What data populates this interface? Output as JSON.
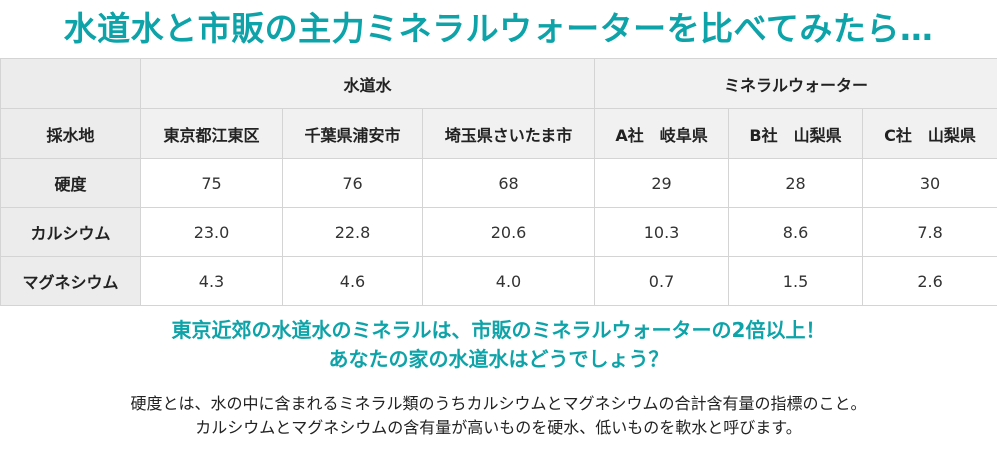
{
  "title": "水道水と市販の主力ミネラルウォーターを比べてみたら…",
  "table": {
    "group_headers": [
      "水道水",
      "ミネラルウォーター"
    ],
    "row_header_label": "採水地",
    "columns": [
      "東京都江東区",
      "千葉県浦安市",
      "埼玉県さいたま市",
      "A社　岐阜県",
      "B社　山梨県",
      "C社　山梨県"
    ],
    "rows": [
      {
        "label": "硬度",
        "values": [
          "75",
          "76",
          "68",
          "29",
          "28",
          "30"
        ]
      },
      {
        "label": "カルシウム",
        "values": [
          "23.0",
          "22.8",
          "20.6",
          "10.3",
          "8.6",
          "7.8"
        ]
      },
      {
        "label": "マグネシウム",
        "values": [
          "4.3",
          "4.6",
          "4.0",
          "0.7",
          "1.5",
          "2.6"
        ]
      }
    ]
  },
  "highlight": {
    "line1": "東京近郊の水道水のミネラルは、市販のミネラルウォーターの2倍以上！",
    "line2": "あなたの家の水道水はどうでしょう？"
  },
  "description": {
    "line1": "硬度とは、水の中に含まれるミネラル類のうちカルシウムとマグネシウムの合計含有量の指標のこと。",
    "line2": "カルシウムとマグネシウムの含有量が高いものを硬水、低いものを軟水と呼びます。"
  },
  "colors": {
    "accent": "#0ea3a8",
    "header_bg": "#f1f1f1",
    "label_bg": "#ececec",
    "border": "#d4d4d4"
  }
}
